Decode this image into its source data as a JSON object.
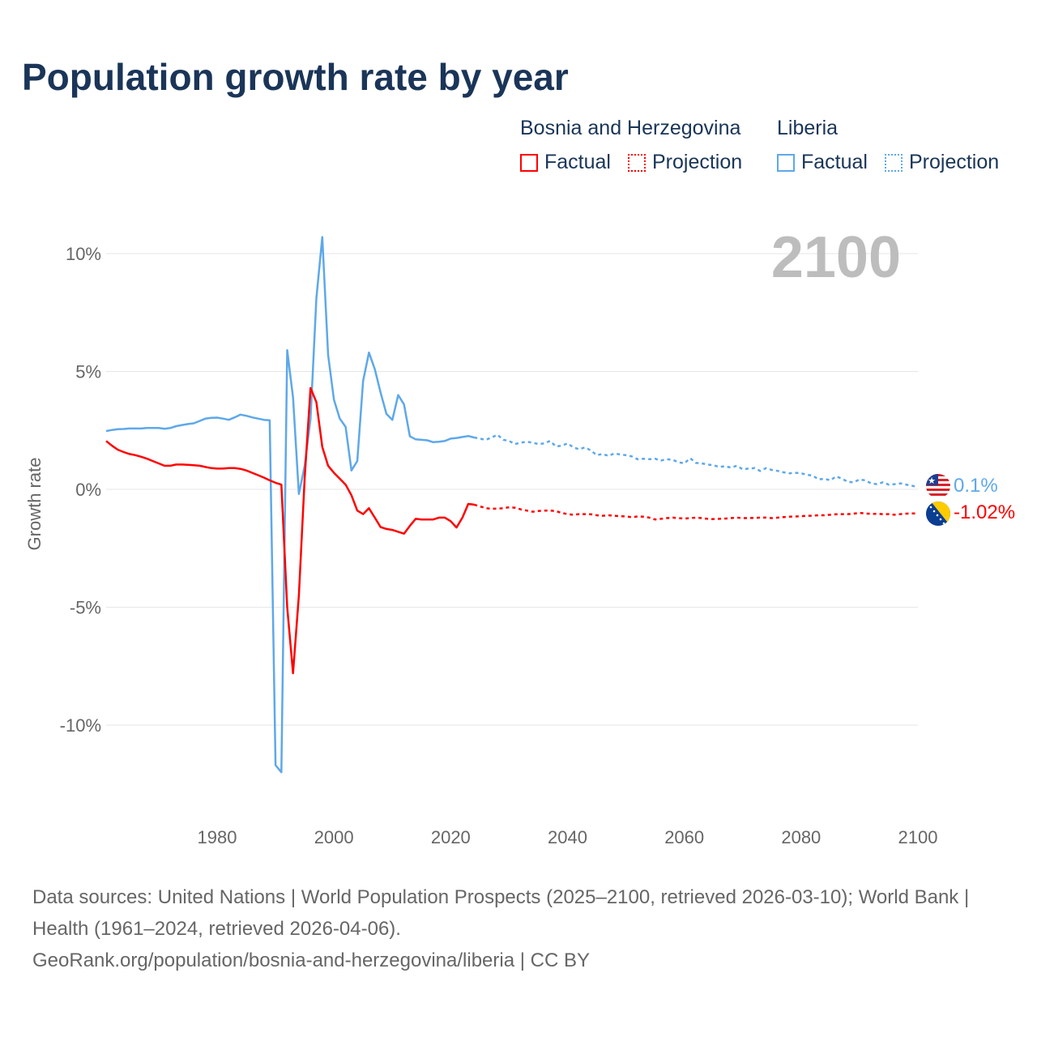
{
  "title": "Population growth rate by year",
  "legend": {
    "groups": [
      {
        "name": "Bosnia and Herzegovina",
        "color": "#ff0000",
        "factual": "Factual",
        "projection": "Projection"
      },
      {
        "name": "Liberia",
        "color": "#5ea8ea",
        "factual": "Factual",
        "projection": "Projection"
      }
    ]
  },
  "year_display": "2100",
  "end_labels": {
    "liberia": "0.1%",
    "bosnia": "-1.02%"
  },
  "footer": {
    "sources": "Data sources: United Nations | World Population Prospects (2025–2100, retrieved 2026-03-10); World Bank | Health (1961–2024, retrieved 2026-04-06).",
    "link": "GeoRank.org/population/bosnia-and-herzegovina/liberia | CC BY"
  },
  "chart_data": {
    "type": "line",
    "title": "Population growth rate by year",
    "xlabel": "",
    "ylabel": "Growth rate",
    "xlim": [
      1961,
      2100
    ],
    "ylim": [
      -12.5,
      11
    ],
    "x_ticks": [
      1980,
      2000,
      2020,
      2040,
      2060,
      2080,
      2100
    ],
    "x_tick_labels": [
      "1980",
      "2000",
      "2020",
      "2040",
      "2060",
      "2080",
      "2100"
    ],
    "y_ticks": [
      10,
      5,
      0,
      -5,
      -10
    ],
    "y_tick_labels": [
      "10%",
      "5%",
      "0%",
      "-5%",
      "-10%"
    ],
    "grid": true,
    "series": [
      {
        "name": "Liberia",
        "color": "#5ea8ea",
        "factual": {
          "start": 1961,
          "values": [
            2.47,
            2.52,
            2.55,
            2.56,
            2.58,
            2.58,
            2.58,
            2.6,
            2.6,
            2.6,
            2.57,
            2.6,
            2.68,
            2.73,
            2.77,
            2.8,
            2.9,
            3.0,
            3.03,
            3.04,
            3.0,
            2.95,
            3.05,
            3.17,
            3.12,
            3.05,
            3.0,
            2.95,
            2.93,
            -11.7,
            -12.0,
            5.9,
            3.9,
            -0.2,
            1.0,
            3.0,
            8.1,
            10.7,
            5.7,
            3.8,
            3.0,
            2.65,
            0.8,
            1.2,
            4.6,
            5.8,
            5.1,
            4.1,
            3.2,
            2.95,
            4.0,
            3.6,
            2.25,
            2.12,
            2.1,
            2.08,
            2.0,
            2.02,
            2.05,
            2.15,
            2.18,
            2.22,
            2.26,
            2.2
          ]
        },
        "projection": {
          "start": 2025,
          "values": [
            2.15,
            2.1,
            2.2,
            2.32,
            2.1,
            2.05,
            1.92,
            1.98,
            2.02,
            1.98,
            1.92,
            1.95,
            2.05,
            1.82,
            1.85,
            1.95,
            1.78,
            1.7,
            1.78,
            1.65,
            1.45,
            1.5,
            1.42,
            1.52,
            1.48,
            1.45,
            1.4,
            1.28,
            1.3,
            1.28,
            1.3,
            1.22,
            1.28,
            1.25,
            1.15,
            1.1,
            1.32,
            1.12,
            1.1,
            1.05,
            1.02,
            0.95,
            0.98,
            0.92,
            1.0,
            0.85,
            0.88,
            0.9,
            0.78,
            0.9,
            0.82,
            0.78,
            0.72,
            0.68,
            0.7,
            0.68,
            0.62,
            0.58,
            0.42,
            0.45,
            0.38,
            0.55,
            0.45,
            0.32,
            0.3,
            0.42,
            0.38,
            0.25,
            0.22,
            0.3,
            0.2,
            0.22,
            0.25,
            0.2,
            0.15,
            0.1
          ]
        }
      },
      {
        "name": "Bosnia and Herzegovina",
        "color": "#ff0000",
        "factual": {
          "start": 1961,
          "values": [
            2.05,
            1.85,
            1.68,
            1.58,
            1.5,
            1.45,
            1.38,
            1.3,
            1.2,
            1.1,
            1.0,
            1.0,
            1.05,
            1.05,
            1.04,
            1.02,
            1.0,
            0.95,
            0.9,
            0.88,
            0.88,
            0.9,
            0.9,
            0.87,
            0.8,
            0.7,
            0.6,
            0.5,
            0.38,
            0.28,
            0.2,
            -5.0,
            -7.8,
            -4.5,
            0.5,
            4.3,
            3.7,
            1.8,
            1.0,
            0.7,
            0.45,
            0.2,
            -0.25,
            -0.9,
            -1.05,
            -0.8,
            -1.2,
            -1.6,
            -1.68,
            -1.72,
            -1.8,
            -1.88,
            -1.55,
            -1.25,
            -1.28,
            -1.28,
            -1.28,
            -1.2,
            -1.2,
            -1.35,
            -1.62,
            -1.2,
            -0.62,
            -0.65
          ]
        },
        "projection": {
          "start": 2025,
          "values": [
            -0.72,
            -0.8,
            -0.82,
            -0.82,
            -0.8,
            -0.76,
            -0.78,
            -0.85,
            -0.9,
            -0.95,
            -0.92,
            -0.9,
            -0.9,
            -0.92,
            -1.0,
            -1.05,
            -1.08,
            -1.05,
            -1.05,
            -1.06,
            -1.1,
            -1.12,
            -1.1,
            -1.12,
            -1.14,
            -1.15,
            -1.18,
            -1.15,
            -1.16,
            -1.2,
            -1.28,
            -1.25,
            -1.22,
            -1.2,
            -1.22,
            -1.24,
            -1.22,
            -1.2,
            -1.22,
            -1.25,
            -1.26,
            -1.25,
            -1.24,
            -1.22,
            -1.2,
            -1.22,
            -1.22,
            -1.21,
            -1.2,
            -1.2,
            -1.22,
            -1.2,
            -1.18,
            -1.16,
            -1.15,
            -1.14,
            -1.12,
            -1.12,
            -1.1,
            -1.1,
            -1.08,
            -1.06,
            -1.05,
            -1.05,
            -1.03,
            -1.0,
            -1.02,
            -1.04,
            -1.04,
            -1.05,
            -1.05,
            -1.08,
            -1.05,
            -1.03,
            -1.02,
            -1.02
          ]
        }
      }
    ]
  }
}
